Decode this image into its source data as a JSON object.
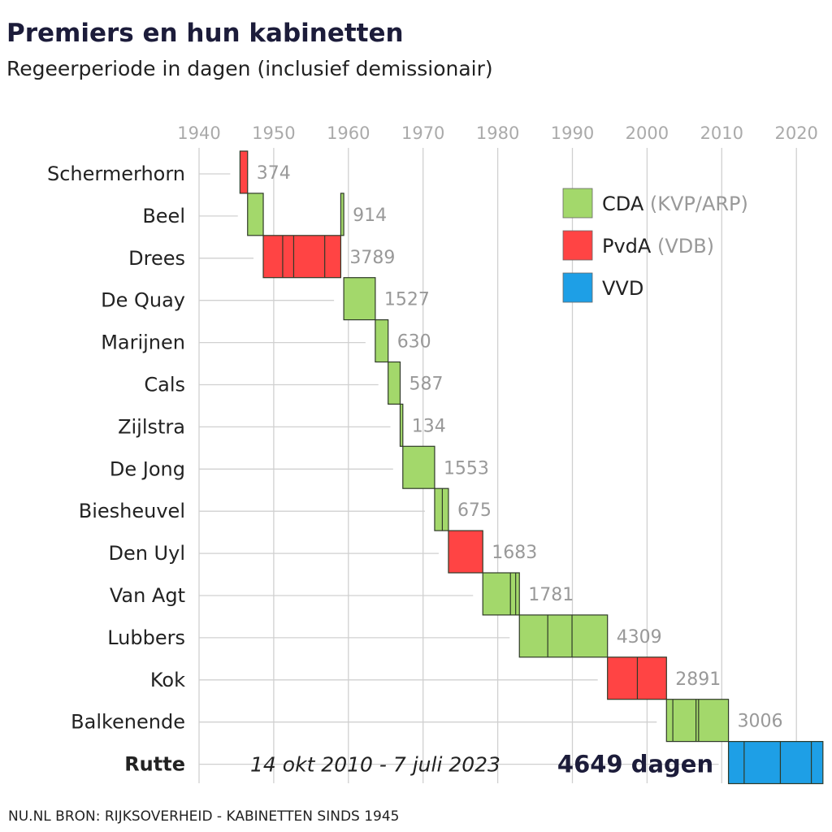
{
  "header": {
    "title": "Premiers en hun kabinetten",
    "subtitle": "Regeerperiode in dagen (inclusief demissionair)"
  },
  "footer": "NU.NL BRON: RIJKSOVERHEID - KABINETTEN SINDS 1945",
  "colors": {
    "CDA": "#a3d86b",
    "PvdA": "#ff4444",
    "VVD": "#1e9fe6",
    "outline": "#2f3a28",
    "grid": "#d0d0d0",
    "highlight": "#1c1c3a"
  },
  "chart_data": {
    "type": "gantt",
    "title": "Premiers en hun kabinetten",
    "subtitle": "Regeerperiode in dagen (inclusief demissionair)",
    "x_axis": {
      "ticks": [
        1940,
        1950,
        1960,
        1970,
        1980,
        1990,
        2000,
        2010,
        2020
      ],
      "range": [
        1940,
        2023.6
      ],
      "position": "top"
    },
    "grid": true,
    "legend": {
      "placement": "top-right",
      "entries": [
        {
          "party": "CDA",
          "label": "CDA",
          "sub": "(KVP/ARP)"
        },
        {
          "party": "PvdA",
          "label": "PvdA",
          "sub": "(VDB)"
        },
        {
          "party": "VVD",
          "label": "VVD",
          "sub": ""
        }
      ]
    },
    "premiers": [
      {
        "name": "Schermerhorn",
        "party": "PvdA",
        "days": "374",
        "periods": [
          [
            1945.48,
            1946.5
          ]
        ],
        "cabinet_breaks": []
      },
      {
        "name": "Beel",
        "party": "CDA",
        "days": "914",
        "periods": [
          [
            1946.5,
            1948.6
          ],
          [
            1958.98,
            1959.38
          ]
        ],
        "cabinet_breaks": []
      },
      {
        "name": "Drees",
        "party": "PvdA",
        "days": "3789",
        "periods": [
          [
            1948.6,
            1958.98
          ]
        ],
        "cabinet_breaks": [
          1951.2,
          1952.67,
          1956.83
        ]
      },
      {
        "name": "De Quay",
        "party": "CDA",
        "days": "1527",
        "periods": [
          [
            1959.38,
            1963.6
          ]
        ],
        "cabinet_breaks": []
      },
      {
        "name": "Marijnen",
        "party": "CDA",
        "days": "630",
        "periods": [
          [
            1963.6,
            1965.32
          ]
        ],
        "cabinet_breaks": []
      },
      {
        "name": "Cals",
        "party": "CDA",
        "days": "587",
        "periods": [
          [
            1965.32,
            1966.93
          ]
        ],
        "cabinet_breaks": []
      },
      {
        "name": "Zijlstra",
        "party": "CDA",
        "days": "134",
        "periods": [
          [
            1966.93,
            1967.29
          ]
        ],
        "cabinet_breaks": []
      },
      {
        "name": "De Jong",
        "party": "CDA",
        "days": "1553",
        "periods": [
          [
            1967.29,
            1971.55
          ]
        ],
        "cabinet_breaks": []
      },
      {
        "name": "Biesheuvel",
        "party": "CDA",
        "days": "675",
        "periods": [
          [
            1971.55,
            1973.4
          ]
        ],
        "cabinet_breaks": [
          1972.58
        ]
      },
      {
        "name": "Den Uyl",
        "party": "PvdA",
        "days": "1683",
        "periods": [
          [
            1973.4,
            1978.0
          ]
        ],
        "cabinet_breaks": []
      },
      {
        "name": "Van Agt",
        "party": "CDA",
        "days": "1781",
        "periods": [
          [
            1978.0,
            1982.9
          ]
        ],
        "cabinet_breaks": [
          1981.7,
          1982.4
        ]
      },
      {
        "name": "Lubbers",
        "party": "CDA",
        "days": "4309",
        "periods": [
          [
            1982.9,
            1994.7
          ]
        ],
        "cabinet_breaks": [
          1986.7,
          1989.95
        ]
      },
      {
        "name": "Kok",
        "party": "PvdA",
        "days": "2891",
        "periods": [
          [
            1994.7,
            2002.6
          ]
        ],
        "cabinet_breaks": [
          1998.7
        ]
      },
      {
        "name": "Balkenende",
        "party": "CDA",
        "days": "3006",
        "periods": [
          [
            2002.6,
            2010.9
          ]
        ],
        "cabinet_breaks": [
          2003.45,
          2006.55,
          2006.9
        ]
      },
      {
        "name": "Rutte",
        "party": "VVD",
        "days": "4649",
        "periods": [
          [
            2010.9,
            2023.55
          ]
        ],
        "cabinet_breaks": [
          2013.0,
          2017.85,
          2022.0
        ],
        "highlight": true,
        "period_label": "14 okt 2010 - 7 juli 2023",
        "days_label": "4649 dagen"
      }
    ]
  }
}
